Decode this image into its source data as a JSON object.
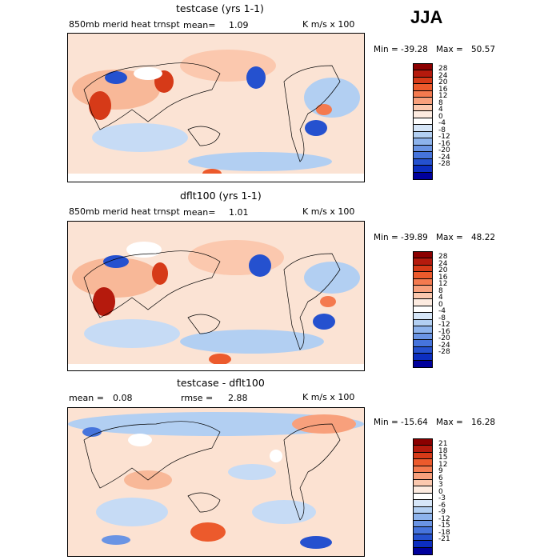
{
  "season": "JJA",
  "panels": [
    {
      "title": "testcase (yrs 1-1)",
      "field_label": "850mb merid heat trnspt",
      "mean_label": "mean=",
      "mean_value": "1.09",
      "units": "K m/s x 100",
      "min_label": "Min =",
      "min_value": "-39.28",
      "max_label": "Max =",
      "max_value": "50.57",
      "levels": [
        "28",
        "24",
        "20",
        "16",
        "12",
        "8",
        "4",
        "0",
        "-4",
        "-8",
        "-12",
        "-16",
        "-20",
        "-24",
        "-28"
      ]
    },
    {
      "title": "dflt100 (yrs 1-1)",
      "field_label": "850mb merid heat trnspt",
      "mean_label": "mean=",
      "mean_value": "1.01",
      "units": "K m/s x 100",
      "min_label": "Min =",
      "min_value": "-39.89",
      "max_label": "Max =",
      "max_value": "48.22",
      "levels": [
        "28",
        "24",
        "20",
        "16",
        "12",
        "8",
        "4",
        "0",
        "-4",
        "-8",
        "-12",
        "-16",
        "-20",
        "-24",
        "-28"
      ]
    },
    {
      "title": "testcase - dflt100",
      "mean_label": "mean =",
      "mean_value": "0.08",
      "rmse_label": "rmse =",
      "rmse_value": "2.88",
      "units": "K m/s x 100",
      "min_label": "Min =",
      "min_value": "-15.64",
      "max_label": "Max =",
      "max_value": "16.28",
      "levels": [
        "21",
        "18",
        "15",
        "12",
        "9",
        "6",
        "3",
        "0",
        "-3",
        "-6",
        "-9",
        "-12",
        "-15",
        "-18",
        "-21"
      ]
    }
  ],
  "colorbar_colors": [
    "#8b0000",
    "#b51a0d",
    "#d63a18",
    "#ec5a2c",
    "#f47a4f",
    "#f8a07c",
    "#fbc8ae",
    "#fdebe0",
    "#ffffff",
    "#d6e6f8",
    "#b2cff2",
    "#8db3ec",
    "#6a94e4",
    "#4674dc",
    "#2551cf",
    "#0c2ec0",
    "#00009c"
  ]
}
